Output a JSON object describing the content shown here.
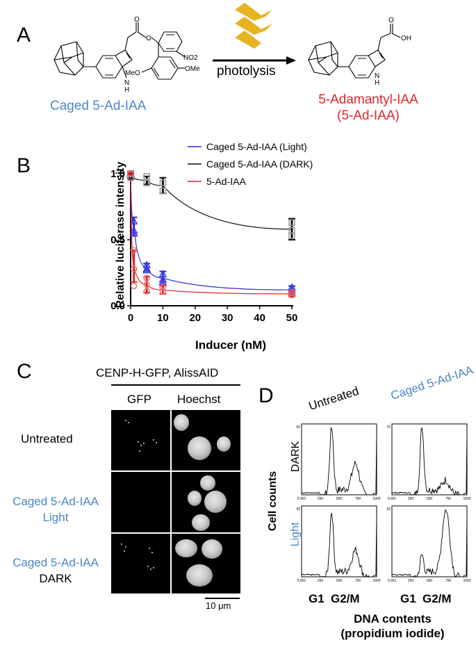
{
  "panel_a": {
    "letter": "A",
    "reactant_label": "Caged 5-Ad-IAA",
    "arrow_label": "photolysis",
    "product_label_line1": "5-Adamantyl-IAA",
    "product_label_line2": "(5-Ad-IAA)",
    "reactant_atoms": {
      "o1": "O",
      "o2": "O",
      "no2": "NO2",
      "meo": "MeO",
      "ome": "OMe",
      "nh": "N",
      "h": "H"
    },
    "product_atoms": {
      "o": "O",
      "oh": "OH",
      "nh": "N",
      "h": "H"
    },
    "colors": {
      "blue": "#4a86c5",
      "red": "#e0262a",
      "lamp": "#e8b321"
    }
  },
  "panel_b": {
    "letter": "B"
  },
  "chart_data": {
    "type": "line",
    "title": "",
    "xlabel": "Inducer (nM)",
    "ylabel": "Relative luciferase intensity",
    "xlim": [
      0,
      50
    ],
    "ylim": [
      0,
      1.0
    ],
    "x_ticks": [
      "0",
      "10",
      "20",
      "30",
      "40",
      "50"
    ],
    "y_ticks": [
      "0.0",
      "0.5",
      "1.0"
    ],
    "legend": "top-right",
    "series": [
      {
        "name": "Caged 5-Ad-IAA (Light)",
        "color": "#2b2bd6",
        "marker": "triangle",
        "x": [
          0,
          1,
          5,
          10,
          50
        ],
        "y": [
          1.0,
          0.6,
          0.29,
          0.21,
          0.12
        ],
        "err": [
          0.02,
          0.07,
          0.03,
          0.05,
          0.03
        ],
        "points": [
          [
            0,
            1.0
          ],
          [
            0,
            0.99
          ],
          [
            1,
            0.64
          ],
          [
            1,
            0.57
          ],
          [
            1,
            0.55
          ],
          [
            5,
            0.31
          ],
          [
            5,
            0.28
          ],
          [
            5,
            0.27
          ],
          [
            10,
            0.24
          ],
          [
            10,
            0.2
          ],
          [
            10,
            0.18
          ],
          [
            50,
            0.14
          ],
          [
            50,
            0.12
          ],
          [
            50,
            0.1
          ]
        ]
      },
      {
        "name": "Caged 5-Ad-IAA (DARK)",
        "color": "#111111",
        "marker": "square",
        "x": [
          0,
          5,
          10,
          50
        ],
        "y": [
          0.98,
          0.95,
          0.91,
          0.58
        ],
        "err": [
          0.02,
          0.03,
          0.06,
          0.08
        ],
        "points": [
          [
            0,
            1.0
          ],
          [
            0,
            0.97
          ],
          [
            5,
            0.98
          ],
          [
            5,
            0.93
          ],
          [
            10,
            0.93
          ],
          [
            10,
            0.87
          ],
          [
            50,
            0.63
          ],
          [
            50,
            0.57
          ],
          [
            50,
            0.53
          ]
        ]
      },
      {
        "name": "5-Ad-IAA",
        "color": "#e0262a",
        "marker": "circle",
        "x": [
          0,
          1,
          5,
          10,
          50
        ],
        "y": [
          1.0,
          0.3,
          0.16,
          0.12,
          0.09
        ],
        "err": [
          0.01,
          0.12,
          0.06,
          0.03,
          0.02
        ],
        "points": [
          [
            0,
            1.0
          ],
          [
            1,
            0.42
          ],
          [
            1,
            0.28
          ],
          [
            1,
            0.15
          ],
          [
            5,
            0.21
          ],
          [
            5,
            0.16
          ],
          [
            5,
            0.11
          ],
          [
            10,
            0.14
          ],
          [
            10,
            0.11
          ],
          [
            50,
            0.1
          ],
          [
            50,
            0.08
          ]
        ]
      }
    ]
  },
  "panel_c": {
    "letter": "C",
    "header": "CENP-H-GFP, AlissAID",
    "col1": "GFP",
    "col2": "Hoechst",
    "row1": "Untreated",
    "row2_line1": "Caged 5-Ad-IAA",
    "row2_line2": "Light",
    "row3_line1": "Caged 5-Ad-IAA",
    "row3_line2": "DARK",
    "scale_bar": "10 μm"
  },
  "panel_d": {
    "letter": "D",
    "col1": "Untreated",
    "col2": "Caged 5-Ad-IAA",
    "row1": "DARK",
    "row2": "Light",
    "ylabel": "Cell counts",
    "g1": "G1",
    "g2m": "G2/M",
    "xlabel_line1": "DNA contents",
    "xlabel_line2": "(propidium iodide)",
    "axis_ticks": [
      "0.001",
      "250",
      "500",
      "750",
      "1000"
    ],
    "ymax_labels": [
      "62",
      "70",
      "62",
      "62"
    ]
  }
}
